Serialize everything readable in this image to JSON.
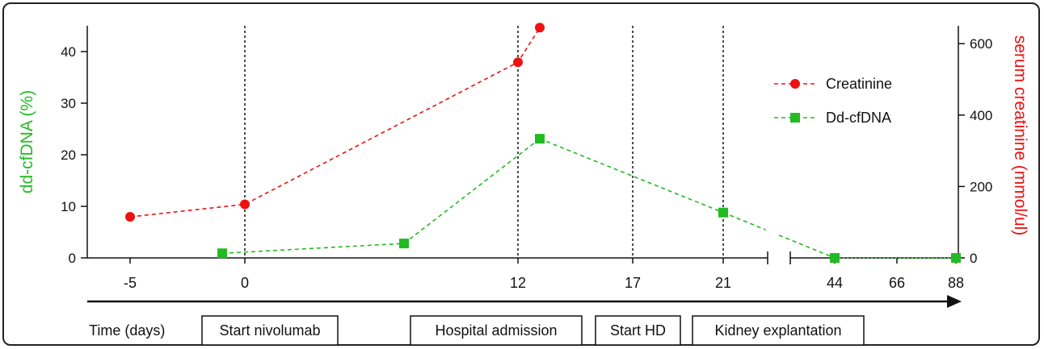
{
  "chart_data": {
    "type": "line",
    "y_left": {
      "label": "dd-cfDNA (%)",
      "ticks": [
        0,
        10,
        20,
        30,
        40
      ],
      "lim": [
        0,
        45
      ],
      "color": "#22bb22"
    },
    "y_right": {
      "label": "serum creatinine (mmol/ul)",
      "ticks": [
        0,
        200,
        400,
        600
      ],
      "lim": [
        0,
        650
      ],
      "color": "#ee1111"
    },
    "x_ticks": [
      "-5",
      "0",
      "12",
      "17",
      "21",
      "44",
      "66",
      "88"
    ],
    "x_label": "Time (days)",
    "series": [
      {
        "name": "Creatinine",
        "axis": "right",
        "color": "#ee1111",
        "marker": "circle",
        "points": [
          {
            "x": "-5",
            "y": 115
          },
          {
            "x": "0",
            "y": 150
          },
          {
            "x": "12",
            "y": 548
          },
          {
            "x": "13",
            "y": 645
          }
        ]
      },
      {
        "name": "Dd-cfDNA",
        "axis": "left",
        "color": "#22bb22",
        "marker": "square",
        "points": [
          {
            "x": "-1",
            "y": 0.9
          },
          {
            "x": "8",
            "y": 2.8
          },
          {
            "x": "13",
            "y": 23.1
          },
          {
            "x": "21",
            "y": 8.8
          },
          {
            "x": "44",
            "y": 0
          },
          {
            "x": "88+",
            "y": 0
          }
        ]
      }
    ],
    "events": [
      {
        "day": "0",
        "label": "Start nivolumab"
      },
      {
        "day": "12",
        "label": "Hospital admission"
      },
      {
        "day": "17",
        "label": "Start HD"
      },
      {
        "day": "21",
        "label": "Kidney explantation"
      }
    ],
    "legend_position": "top-right"
  }
}
